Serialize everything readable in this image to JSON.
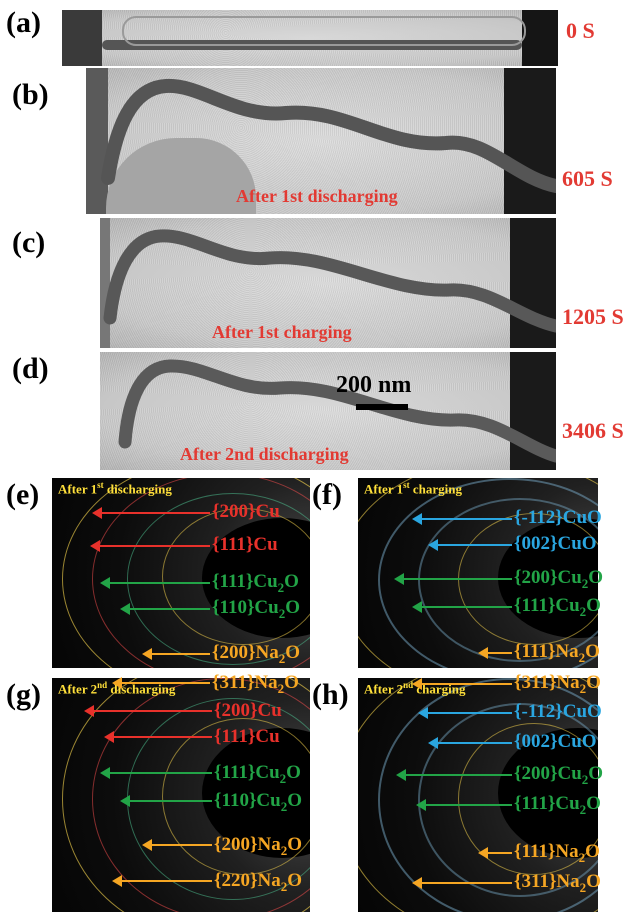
{
  "panels": {
    "a": {
      "letter": "(a)",
      "time": "0 S"
    },
    "b": {
      "letter": "(b)",
      "time": "605 S",
      "caption": "After 1st discharging"
    },
    "c": {
      "letter": "(c)",
      "time": "1205 S",
      "caption": "After 1st charging"
    },
    "d": {
      "letter": "(d)",
      "time": "3406 S",
      "caption": "After 2nd discharging",
      "scalebar": "200 nm"
    },
    "e": {
      "letter": "(e)",
      "title_pre": "After 1",
      "title_sup": "st",
      "title_post": " discharging",
      "labels": [
        {
          "pre": "{200}Cu",
          "sub": "",
          "post": ""
        },
        {
          "pre": "{111}Cu",
          "sub": "",
          "post": ""
        },
        {
          "pre": "{111}Cu",
          "sub": "2",
          "post": "O"
        },
        {
          "pre": "{110}Cu",
          "sub": "2",
          "post": "O"
        },
        {
          "pre": "{200}Na",
          "sub": "2",
          "post": "O"
        },
        {
          "pre": "{311}Na",
          "sub": "2",
          "post": "O"
        }
      ]
    },
    "f": {
      "letter": "(f)",
      "title_pre": "After 1",
      "title_sup": "st",
      "title_post": " charging",
      "labels": [
        {
          "pre": "{-112}CuO",
          "sub": "",
          "post": ""
        },
        {
          "pre": "{002}CuO",
          "sub": "",
          "post": ""
        },
        {
          "pre": "{200}Cu",
          "sub": "2",
          "post": "O"
        },
        {
          "pre": "{111}Cu",
          "sub": "2",
          "post": "O"
        },
        {
          "pre": "{111}Na",
          "sub": "2",
          "post": "O"
        },
        {
          "pre": "{311}Na",
          "sub": "2",
          "post": "O"
        }
      ]
    },
    "g": {
      "letter": "(g)",
      "title_pre": "After 2",
      "title_sup": "nd",
      "title_post": " discharging",
      "labels": [
        {
          "pre": "{200}Cu",
          "sub": "",
          "post": ""
        },
        {
          "pre": "{111}Cu",
          "sub": "",
          "post": ""
        },
        {
          "pre": "{111}Cu",
          "sub": "2",
          "post": "O"
        },
        {
          "pre": "{110}Cu",
          "sub": "2",
          "post": "O"
        },
        {
          "pre": "{200}Na",
          "sub": "2",
          "post": "O"
        },
        {
          "pre": "{220}Na",
          "sub": "2",
          "post": "O"
        }
      ]
    },
    "h": {
      "letter": "(h)",
      "title_pre": "After 2",
      "title_sup": "nd",
      "title_post": " charging",
      "labels": [
        {
          "pre": "{-112}CuO",
          "sub": "",
          "post": ""
        },
        {
          "pre": "{002}CuO",
          "sub": "",
          "post": ""
        },
        {
          "pre": "{200}Cu",
          "sub": "2",
          "post": "O"
        },
        {
          "pre": "{111}Cu",
          "sub": "2",
          "post": "O"
        },
        {
          "pre": "{111}Na",
          "sub": "2",
          "post": "O"
        },
        {
          "pre": "{311}Na",
          "sub": "2",
          "post": "O"
        }
      ]
    }
  },
  "colors": {
    "time": "#e23a33",
    "cu": "#e8312b",
    "cu2o": "#22a447",
    "na2o": "#f5a623",
    "cuo": "#2aa6e0",
    "sed_title": "#ffe03a"
  }
}
